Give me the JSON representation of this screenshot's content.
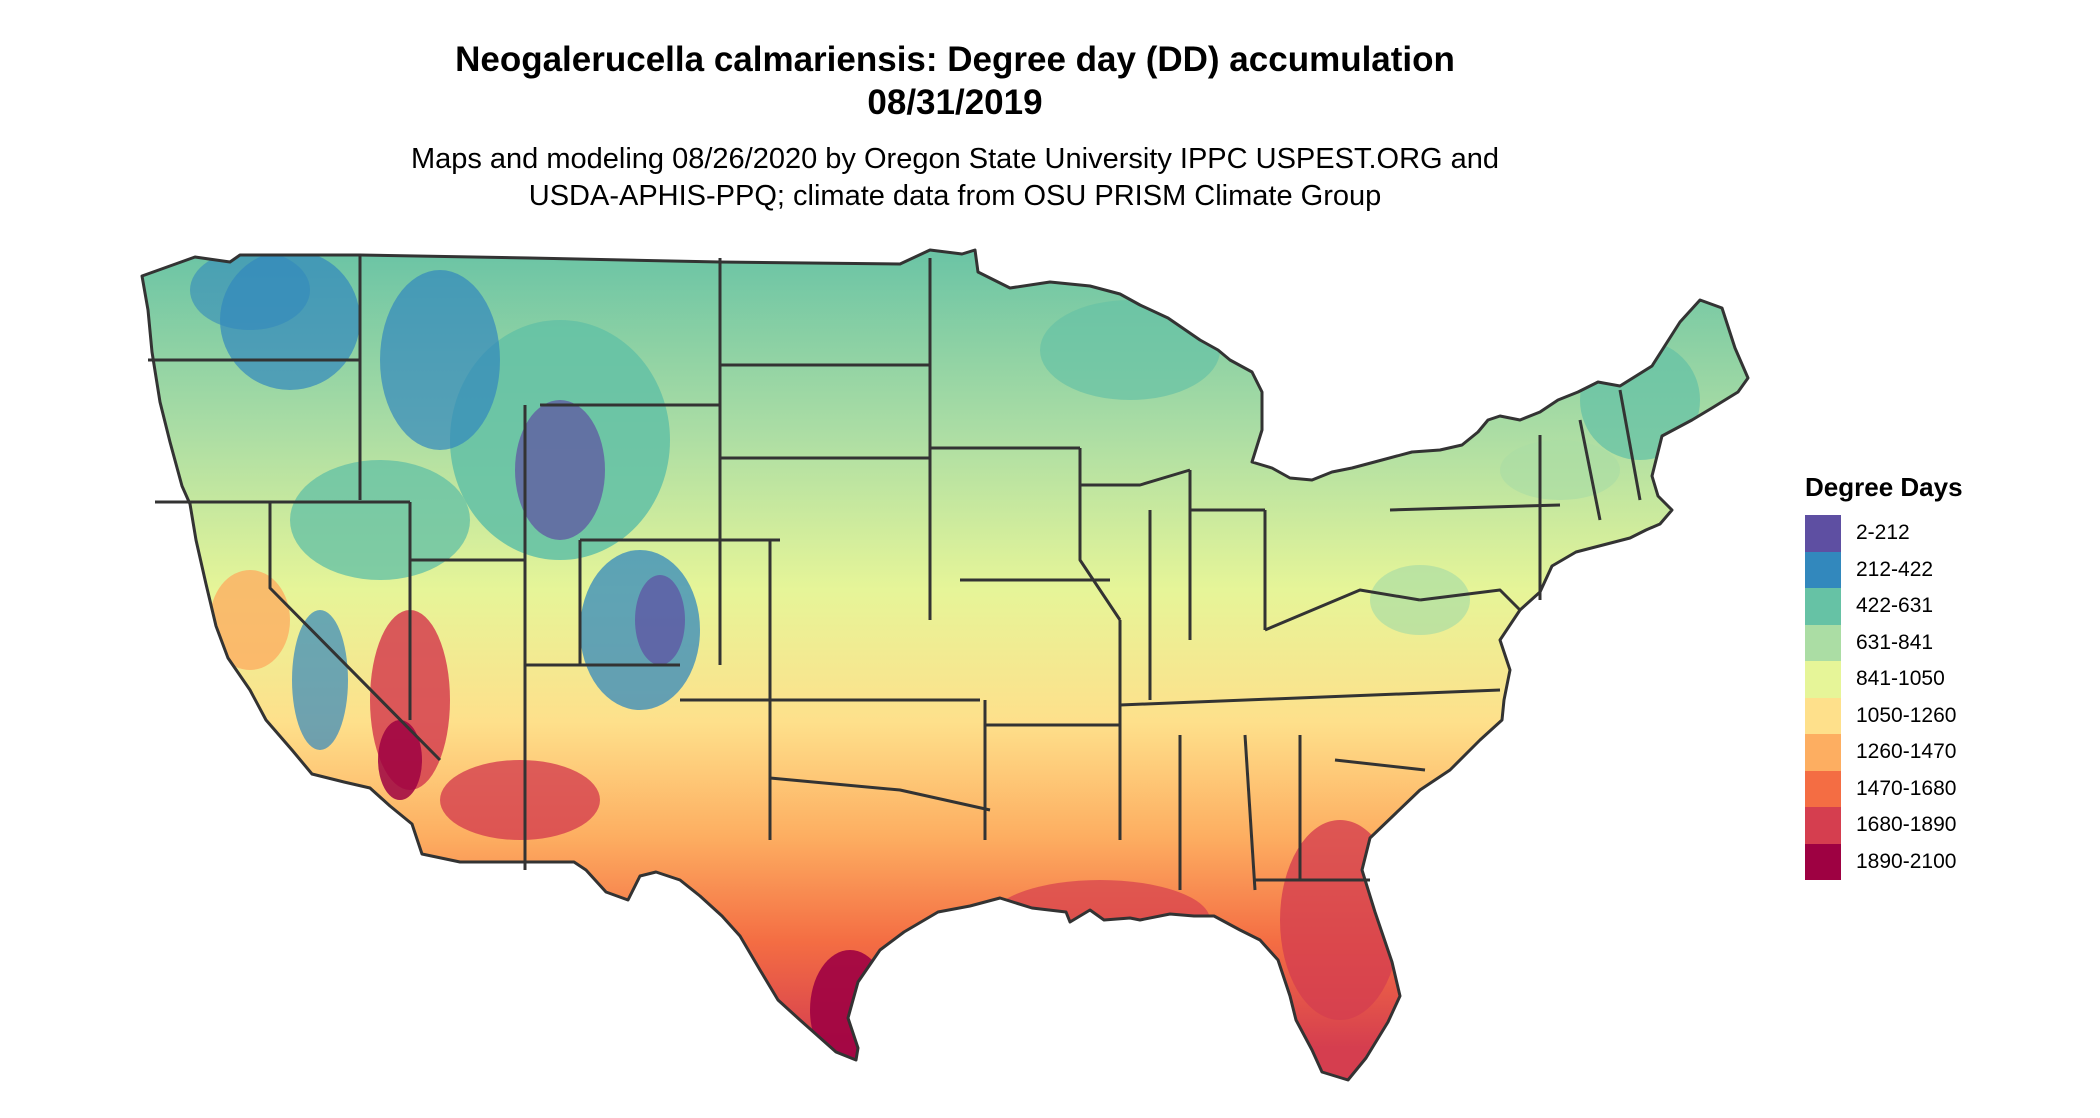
{
  "title": {
    "line1": "Neogalerucella calmariensis: Degree day (DD) accumulation",
    "line2": "08/31/2019"
  },
  "subtitle": {
    "line1": "Maps and modeling 08/26/2020 by Oregon State University IPPC USPEST.ORG and",
    "line2": "USDA-APHIS-PPQ; climate data from OSU PRISM Climate Group"
  },
  "legend": {
    "title": "Degree Days",
    "items": [
      {
        "label": "2-212",
        "color": "#5E4FA2"
      },
      {
        "label": "212-422",
        "color": "#3288BD"
      },
      {
        "label": "422-631",
        "color": "#66C2A5"
      },
      {
        "label": "631-841",
        "color": "#ABDDA4"
      },
      {
        "label": "841-1050",
        "color": "#E6F598"
      },
      {
        "label": "1050-1260",
        "color": "#FEE08B"
      },
      {
        "label": "1260-1470",
        "color": "#FDAE61"
      },
      {
        "label": "1470-1680",
        "color": "#F46D43"
      },
      {
        "label": "1680-1890",
        "color": "#D53E4F"
      },
      {
        "label": "1890-2100",
        "color": "#9E0142"
      }
    ]
  },
  "map": {
    "region": "Contiguous United States",
    "border_color": "#333333"
  }
}
